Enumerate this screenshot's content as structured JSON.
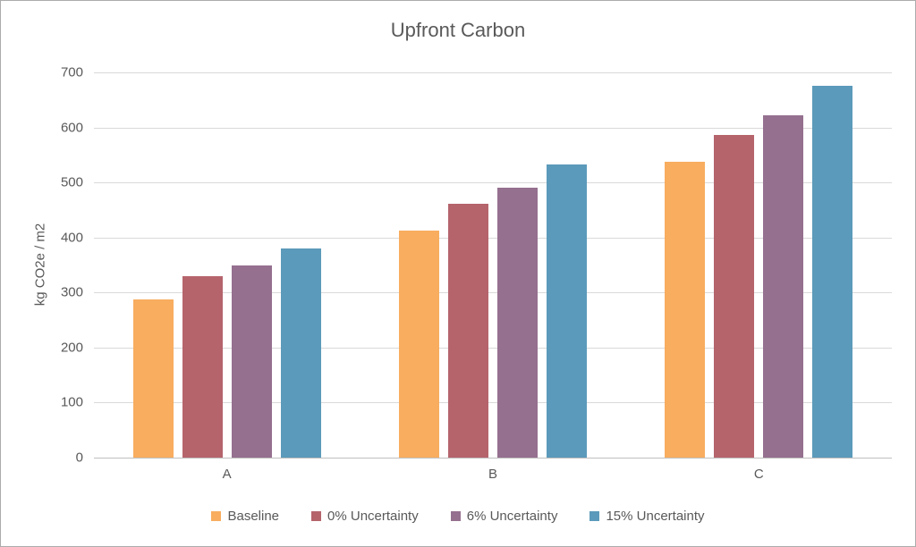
{
  "title": "Upfront Carbon",
  "chart_data": {
    "type": "bar",
    "title": "Upfront Carbon",
    "categories": [
      "A",
      "B",
      "C"
    ],
    "series": [
      {
        "name": "Baseline",
        "color": "#F8AD5F",
        "values": [
          287,
          412,
          537
        ]
      },
      {
        "name": "0% Uncertainty",
        "color": "#B5646C",
        "values": [
          330,
          462,
          587
        ]
      },
      {
        "name": "6% Uncertainty",
        "color": "#95708F",
        "values": [
          350,
          490,
          622
        ]
      },
      {
        "name": "15% Uncertainty",
        "color": "#5B9ABA",
        "values": [
          380,
          532,
          675
        ]
      }
    ],
    "xlabel": "",
    "ylabel": "kg CO2e / m2",
    "ylim": [
      0,
      700
    ],
    "ytick_step": 100,
    "ytick_labels": [
      "0",
      "100",
      "200",
      "300",
      "400",
      "500",
      "600",
      "700"
    ],
    "grid": true,
    "legend_position": "bottom"
  },
  "colors": {
    "text": "#595959",
    "gridline": "#D9D9D9",
    "axis_line": "#BFBFBF",
    "background": "#FFFFFF",
    "border": "#ABABAB"
  }
}
